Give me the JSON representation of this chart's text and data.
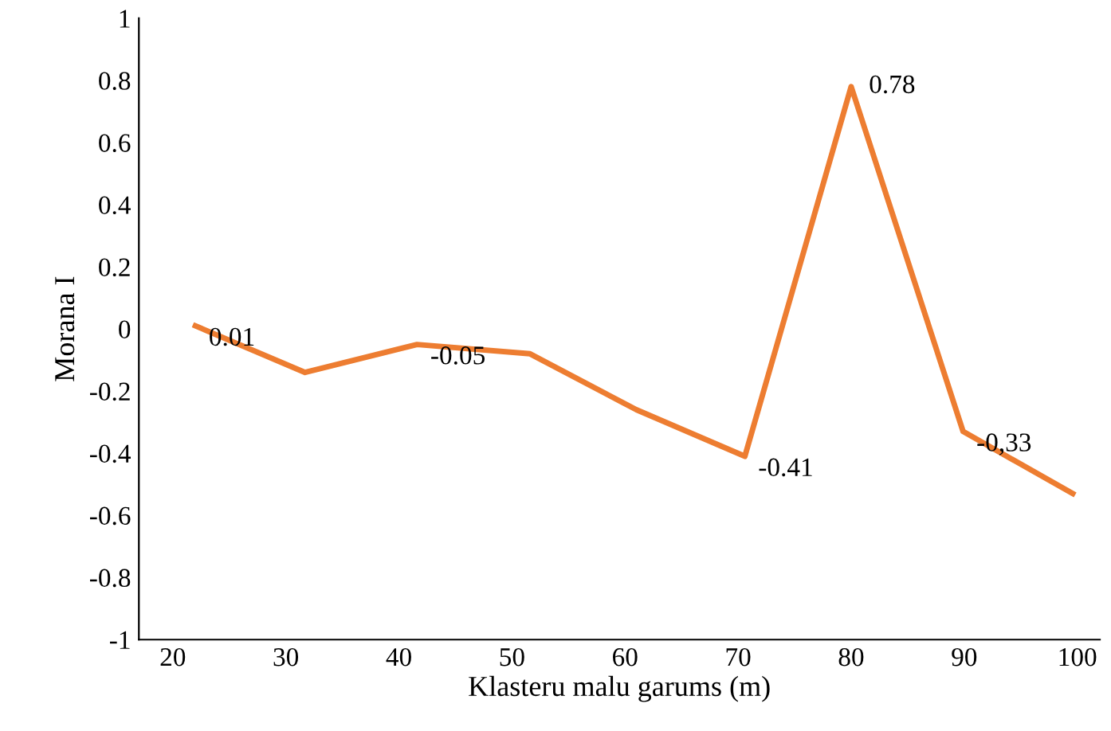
{
  "chart_data": {
    "type": "line",
    "xlabel": "Klasteru malu garums (m)",
    "ylabel": "Morana I",
    "x": [
      22,
      31.7,
      41.6,
      51.6,
      61,
      70.6,
      80,
      89.9,
      99.6
    ],
    "series": [
      {
        "color": "#ed7d31",
        "values": [
          0.01,
          -0.14,
          -0.05,
          -0.08,
          -0.26,
          -0.41,
          0.78,
          -0.33,
          -0.53
        ],
        "value_labels": [
          "0.01",
          null,
          "-0.05",
          null,
          null,
          "-0.41",
          "0.78",
          "-0,33",
          null
        ]
      }
    ],
    "xlim": [
      17,
      102
    ],
    "xticks": [
      20,
      30,
      40,
      50,
      60,
      70,
      80,
      90,
      100
    ],
    "ylim": [
      -1,
      1
    ],
    "yticks": [
      {
        "value": -1,
        "label": "-1"
      },
      {
        "value": -0.8,
        "label": "-0.8"
      },
      {
        "value": -0.6,
        "label": "-0.6"
      },
      {
        "value": -0.4,
        "label": "-0.4"
      },
      {
        "value": -0.2,
        "label": "-0.2"
      },
      0,
      0.2,
      0.4,
      0.6,
      0.8,
      1
    ],
    "grid": false,
    "legend": false,
    "marker": "none",
    "line_style": "solid"
  }
}
